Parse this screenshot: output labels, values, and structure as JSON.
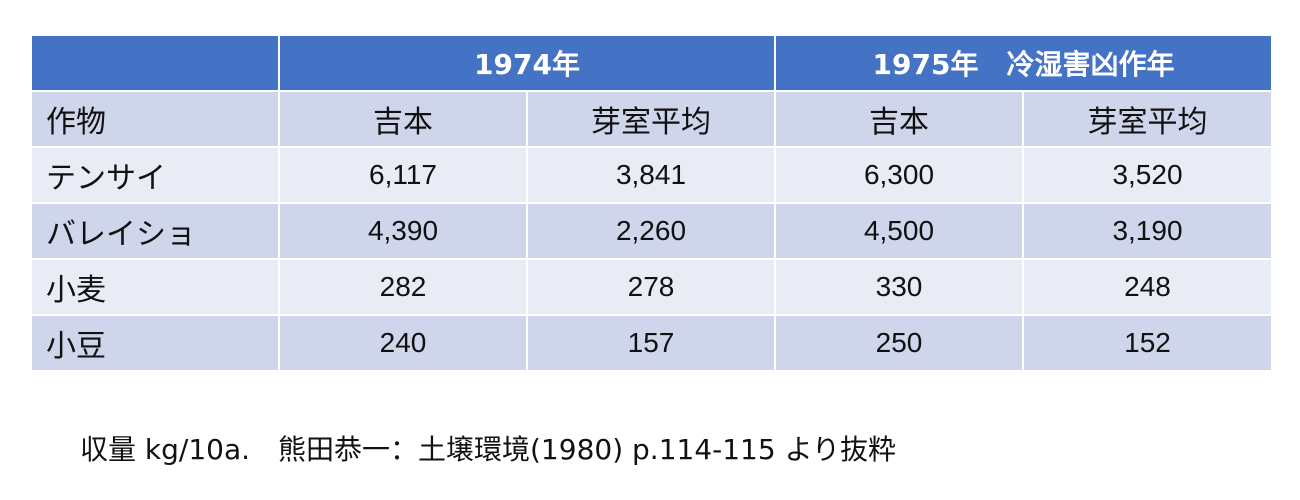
{
  "table": {
    "header": {
      "corner": "",
      "year1": "1974年",
      "year2": "1975年　冷湿害凶作年"
    },
    "subheader": {
      "crop_label": "作物",
      "cols": [
        "吉本",
        "芽室平均",
        "吉本",
        "芽室平均"
      ]
    },
    "rows": [
      {
        "crop": "テンサイ",
        "values": [
          "6,117",
          "3,841",
          "6,300",
          "3,520"
        ]
      },
      {
        "crop": "バレイショ",
        "values": [
          "4,390",
          "2,260",
          "4,500",
          "3,190"
        ]
      },
      {
        "crop": "小麦",
        "values": [
          "282",
          "278",
          "330",
          "248"
        ]
      },
      {
        "crop": "小豆",
        "values": [
          "240",
          "157",
          "250",
          "152"
        ]
      }
    ],
    "colors": {
      "header_bg": "#4472c4",
      "band_dark": "#cfd5ea",
      "band_light": "#e9ebf5"
    }
  },
  "caption": "収量 kg/10a.　熊田恭一：土壌環境(1980) p.114-115 より抜粋"
}
